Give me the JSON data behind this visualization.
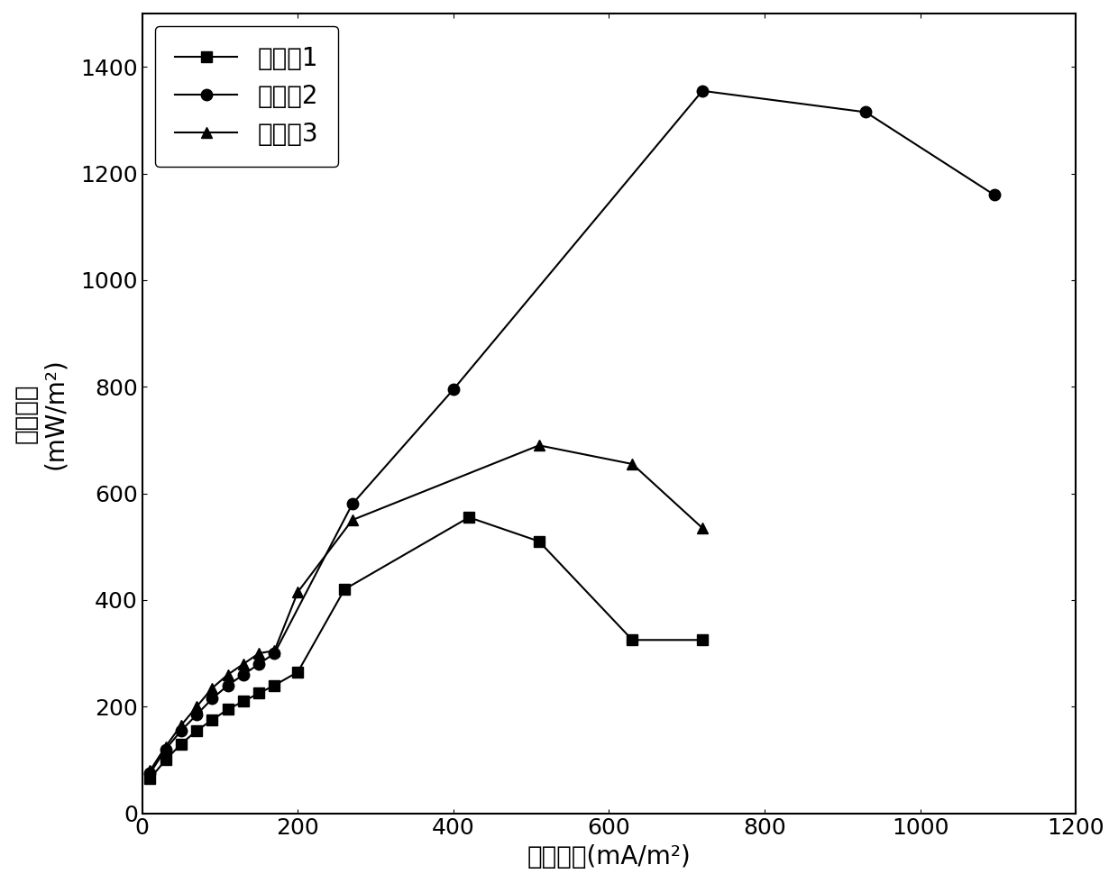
{
  "series1": {
    "label": "实施例1",
    "marker": "s",
    "x": [
      10,
      30,
      50,
      70,
      90,
      110,
      130,
      150,
      170,
      200,
      260,
      420,
      510,
      630,
      720
    ],
    "y": [
      65,
      100,
      130,
      155,
      175,
      195,
      210,
      225,
      240,
      265,
      420,
      555,
      510,
      325,
      325
    ]
  },
  "series2": {
    "label": "实施例2",
    "marker": "o",
    "x": [
      10,
      30,
      50,
      70,
      90,
      110,
      130,
      150,
      170,
      270,
      400,
      720,
      930,
      1095
    ],
    "y": [
      75,
      120,
      155,
      185,
      215,
      240,
      260,
      280,
      300,
      580,
      795,
      1355,
      1315,
      1160
    ]
  },
  "series3": {
    "label": "实施例3",
    "marker": "^",
    "x": [
      10,
      30,
      50,
      70,
      90,
      110,
      130,
      150,
      170,
      200,
      270,
      510,
      630,
      720
    ],
    "y": [
      80,
      125,
      165,
      200,
      235,
      260,
      280,
      300,
      305,
      415,
      550,
      690,
      655,
      535
    ]
  },
  "xlabel": "电流密度(mA/m²)",
  "ylabel_line1": "功率密度",
  "ylabel_line2": "(mW/m²)",
  "xlim": [
    0,
    1200
  ],
  "ylim": [
    0,
    1500
  ],
  "xticks": [
    0,
    200,
    400,
    600,
    800,
    1000,
    1200
  ],
  "yticks": [
    0,
    200,
    400,
    600,
    800,
    1000,
    1200,
    1400
  ],
  "line_color": "#000000",
  "marker_color": "#000000",
  "marker_size": 9,
  "linewidth": 1.5,
  "legend_fontsize": 20,
  "axis_fontsize": 20,
  "tick_fontsize": 18
}
